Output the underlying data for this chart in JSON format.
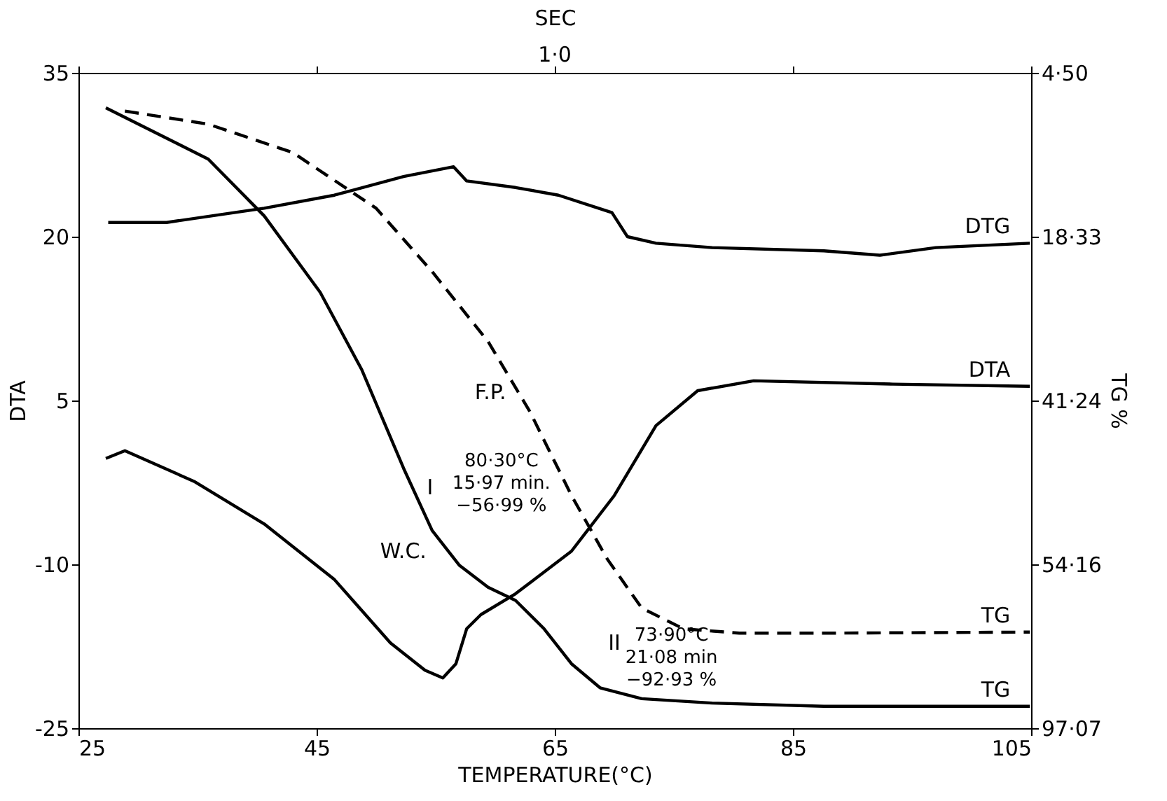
{
  "chart_data": {
    "type": "line",
    "xlabel": "TEMPERATURE(°C)",
    "ylabel": "DTA",
    "y2label": "TG %",
    "x2label": "SEC",
    "xlim": [
      25,
      105
    ],
    "xticks": [
      25,
      45,
      65,
      85,
      105
    ],
    "ylim": [
      -25,
      35
    ],
    "yticks": [
      -25,
      -10,
      5,
      20,
      35
    ],
    "y2_categories": [
      "4·50",
      "18·33",
      "41·24",
      "54·16",
      "97·07"
    ],
    "grid": false,
    "legend": "right",
    "marker": "none",
    "series": [
      {
        "name": "DTG",
        "color": "#000000",
        "line_style": "solid",
        "x": [
          27.5,
          32.4,
          40.6,
          46.5,
          52.3,
          56.5,
          57.6,
          61.7,
          65.3,
          69.8,
          71.1,
          73.5,
          78.2,
          87.6,
          92.3,
          97.0,
          104.9
        ],
        "values": [
          21.3,
          21.3,
          22.6,
          23.8,
          25.5,
          26.4,
          25.1,
          24.5,
          23.8,
          22.2,
          20.0,
          19.4,
          19.0,
          18.7,
          18.3,
          19.0,
          19.4
        ]
      },
      {
        "name": "DTA",
        "color": "#000000",
        "line_style": "solid",
        "x": [
          27.3,
          28.9,
          34.7,
          40.6,
          46.5,
          51.2,
          54.1,
          55.6,
          56.7,
          57.6,
          58.8,
          61.7,
          66.4,
          70.0,
          73.5,
          77.0,
          81.7,
          93.4,
          104.9
        ],
        "values": [
          -0.3,
          0.4,
          -2.4,
          -6.3,
          -11.4,
          -17.2,
          -19.7,
          -20.4,
          -19.1,
          -15.9,
          -14.6,
          -12.7,
          -8.8,
          -3.7,
          2.7,
          5.9,
          6.8,
          6.5,
          6.3
        ]
      },
      {
        "name": "TG",
        "color": "#000000",
        "line_style": "dashed",
        "x": [
          28.9,
          35.9,
          43.0,
          50.0,
          54.7,
          59.4,
          62.9,
          66.4,
          69.4,
          72.3,
          75.8,
          80.5,
          87.6,
          104.9
        ],
        "values": [
          31.5,
          30.3,
          27.7,
          22.6,
          16.8,
          10.4,
          4.0,
          -3.7,
          -9.5,
          -14.0,
          -15.9,
          -16.3,
          -16.3,
          -16.2
        ]
      },
      {
        "name": "TG",
        "color": "#000000",
        "line_style": "solid",
        "x": [
          27.3,
          35.9,
          40.6,
          45.3,
          48.8,
          52.3,
          54.7,
          57.0,
          59.4,
          61.7,
          64.1,
          66.4,
          68.8,
          72.3,
          78.2,
          87.6,
          104.9
        ],
        "values": [
          31.8,
          27.1,
          21.9,
          14.9,
          7.8,
          -1.2,
          -6.9,
          -10.1,
          -12.1,
          -13.3,
          -15.9,
          -19.1,
          -21.3,
          -22.3,
          -22.7,
          -23.0,
          -23.0
        ]
      }
    ],
    "annotations": [
      "1·0",
      "F.P.",
      "I",
      "W.C.",
      "II",
      "80·30°C\n15·97 min.\n−56·99 %",
      "73·90°C\n21·08 min\n−92·93 %"
    ]
  }
}
